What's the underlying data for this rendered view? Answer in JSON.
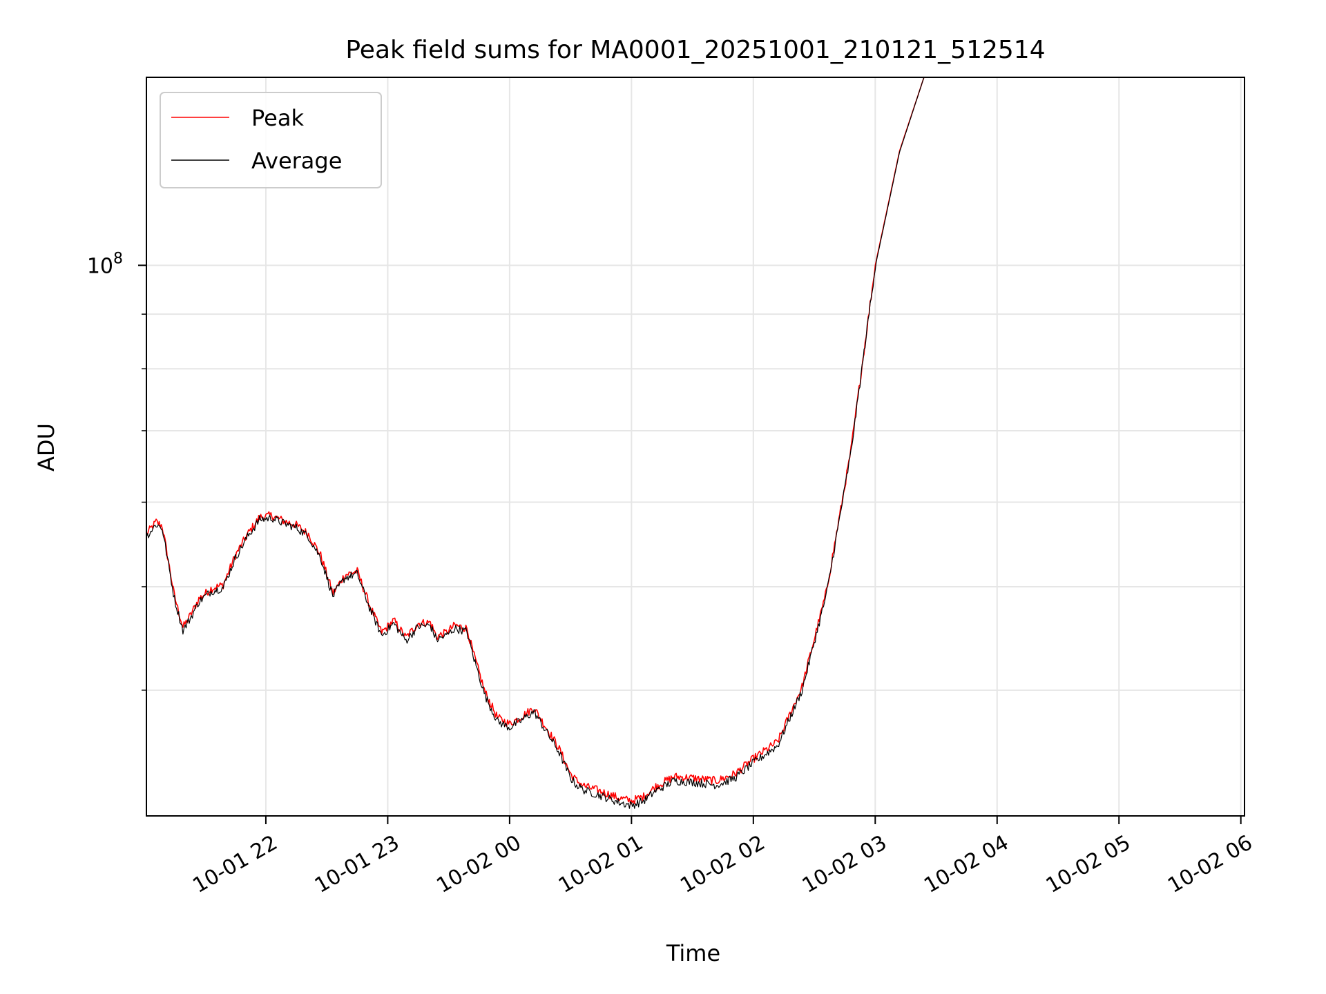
{
  "chart_data": {
    "type": "line",
    "title": "Peak field sums for MA0001_20251001_210121_512514",
    "xlabel": "Time",
    "ylabel": "ADU",
    "y_scale": "log",
    "ylim": [
      30500000,
      150000000
    ],
    "xlim_hours": [
      21.02,
      30.03
    ],
    "x_ticks": [
      {
        "hour": 22,
        "label": "10-01 22"
      },
      {
        "hour": 23,
        "label": "10-01 23"
      },
      {
        "hour": 24,
        "label": "10-02 00"
      },
      {
        "hour": 25,
        "label": "10-02 01"
      },
      {
        "hour": 26,
        "label": "10-02 02"
      },
      {
        "hour": 27,
        "label": "10-02 03"
      },
      {
        "hour": 28,
        "label": "10-02 04"
      },
      {
        "hour": 29,
        "label": "10-02 05"
      },
      {
        "hour": 30,
        "label": "10-02 06"
      }
    ],
    "y_major_tick": {
      "value": 100000000,
      "label_base": "10",
      "label_exp": "8"
    },
    "y_minor_ticks": [
      40000000,
      50000000,
      60000000,
      70000000,
      80000000,
      90000000,
      200000000
    ],
    "grid": true,
    "legend": {
      "position": "upper-left",
      "entries": [
        {
          "label": "Peak",
          "color": "#ff0000"
        },
        {
          "label": "Average",
          "color": "#000000"
        }
      ]
    },
    "series": [
      {
        "name": "Peak",
        "color": "#ff0000",
        "x_hours": [
          21.02,
          21.1,
          21.15,
          21.25,
          21.32,
          21.38,
          21.45,
          21.55,
          21.65,
          21.75,
          21.85,
          21.95,
          22.05,
          22.15,
          22.25,
          22.35,
          22.45,
          22.55,
          22.65,
          22.75,
          22.85,
          22.95,
          23.05,
          23.15,
          23.25,
          23.35,
          23.4,
          23.48,
          23.55,
          23.65,
          23.7,
          23.8,
          23.9,
          24.0,
          24.1,
          24.2,
          24.3,
          24.4,
          24.5,
          24.55,
          24.62,
          24.7,
          24.8,
          24.9,
          25.0,
          25.1,
          25.2,
          25.35,
          25.5,
          25.7,
          25.85,
          26.0,
          26.2,
          26.4,
          26.6,
          26.8,
          27.0,
          27.2,
          27.4,
          27.6,
          27.8,
          28.0,
          28.2,
          28.4,
          28.6,
          28.8,
          29.0,
          29.1,
          29.2,
          29.3,
          29.4,
          29.5,
          29.6,
          29.7,
          29.75,
          29.8
        ],
        "values": [
          56000000,
          57500000,
          57000000,
          49000000,
          45800000,
          47000000,
          48700000,
          49800000,
          50200000,
          53500000,
          56000000,
          58100000,
          58300000,
          57600000,
          57100000,
          56000000,
          53500000,
          49300000,
          51300000,
          51700000,
          48100000,
          45300000,
          46500000,
          44800000,
          46200000,
          46300000,
          44900000,
          45300000,
          46000000,
          45700000,
          43400000,
          39800000,
          37700000,
          37200000,
          37800000,
          38500000,
          36900000,
          35400000,
          33400000,
          32900000,
          32500000,
          32300000,
          32000000,
          31700000,
          31500000,
          31800000,
          32500000,
          33200000,
          33100000,
          32900000,
          33400000,
          34500000,
          35800000,
          40300000,
          49500000,
          67000000,
          100000000,
          128000000,
          150000000,
          150000000,
          150000000,
          150000000,
          150000000,
          150000000,
          150000000,
          150000000,
          150000000,
          150000000,
          150000000,
          150000000,
          150000000,
          150000000,
          150000000,
          150000000,
          150000000,
          150000000
        ]
      },
      {
        "name": "Average",
        "color": "#000000",
        "x_hours": [
          21.02,
          21.1,
          21.15,
          21.25,
          21.32,
          21.38,
          21.45,
          21.55,
          21.65,
          21.75,
          21.85,
          21.95,
          22.05,
          22.15,
          22.25,
          22.35,
          22.45,
          22.55,
          22.65,
          22.75,
          22.85,
          22.95,
          23.05,
          23.15,
          23.25,
          23.35,
          23.4,
          23.48,
          23.55,
          23.65,
          23.7,
          23.8,
          23.9,
          24.0,
          24.1,
          24.2,
          24.3,
          24.4,
          24.5,
          24.55,
          24.62,
          24.7,
          24.8,
          24.9,
          25.0,
          25.1,
          25.2,
          25.35,
          25.5,
          25.7,
          25.85,
          26.0,
          26.2,
          26.4,
          26.6,
          26.8,
          27.0,
          27.2,
          27.4,
          27.6,
          27.8,
          28.0,
          28.2,
          28.4,
          28.6,
          28.8,
          29.0,
          29.1,
          29.2,
          29.3,
          29.4,
          29.5,
          29.6,
          29.7,
          29.75,
          29.8
        ],
        "values": [
          55700000,
          57200000,
          56700000,
          48700000,
          45500000,
          46700000,
          48400000,
          49500000,
          49900000,
          53200000,
          55700000,
          57800000,
          58000000,
          57300000,
          56800000,
          55700000,
          53200000,
          49000000,
          51000000,
          51400000,
          47800000,
          45000000,
          46200000,
          44500000,
          45900000,
          46000000,
          44600000,
          45000000,
          45700000,
          45400000,
          43100000,
          39500000,
          37400000,
          36900000,
          37500000,
          38200000,
          36600000,
          35100000,
          33100000,
          32600000,
          32200000,
          32000000,
          31700000,
          31400000,
          31200000,
          31500000,
          32200000,
          32900000,
          32800000,
          32600000,
          33100000,
          34200000,
          35500000,
          40000000,
          49200000,
          66700000,
          99700000,
          127700000,
          150000000,
          150000000,
          150000000,
          150000000,
          150000000,
          150000000,
          150000000,
          150000000,
          150000000,
          150000000,
          150000000,
          150000000,
          150000000,
          150000000,
          150000000,
          150000000,
          150000000,
          150000000
        ]
      }
    ]
  }
}
